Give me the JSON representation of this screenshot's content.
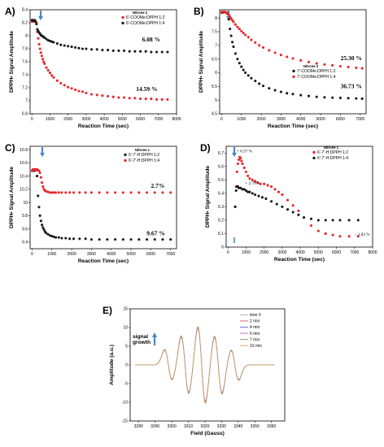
{
  "chart_data": [
    {
      "id": "A",
      "type": "scatter",
      "panel_label": "A)",
      "xlabel": "Reaction Time (sec)",
      "ylabel": "DPPH• Signal Amplitude",
      "xlim": [
        -100,
        8000
      ],
      "ylim": [
        6.8,
        8.4
      ],
      "xticks": [
        0,
        1000,
        2000,
        3000,
        4000,
        5000,
        6000,
        7000,
        8000
      ],
      "yticks": [
        6.8,
        7.0,
        7.2,
        7.4,
        7.6,
        7.8,
        8.0,
        8.2,
        8.4
      ],
      "legend_title": "Nitrone 2",
      "legend_position": "top-right",
      "series": [
        {
          "name": "6'-COOMe:DPPH 1:2",
          "color": "#e8262b",
          "x": [
            0,
            50,
            100,
            150,
            200,
            250,
            300,
            350,
            400,
            450,
            500,
            550,
            600,
            650,
            700,
            800,
            900,
            1000,
            1100,
            1200,
            1400,
            1600,
            1800,
            2000,
            2200,
            2400,
            2600,
            2800,
            3000,
            3300,
            3600,
            3900,
            4200,
            4500,
            4800,
            5100,
            5400,
            5700,
            6000,
            6300,
            6600,
            6900,
            7200,
            7500
          ],
          "y": [
            8.22,
            8.22,
            8.23,
            8.22,
            8.22,
            8.2,
            8.06,
            7.96,
            7.87,
            7.8,
            7.74,
            7.69,
            7.64,
            7.6,
            7.57,
            7.51,
            7.47,
            7.43,
            7.39,
            7.36,
            7.31,
            7.27,
            7.24,
            7.21,
            7.19,
            7.17,
            7.15,
            7.14,
            7.12,
            7.1,
            7.09,
            7.08,
            7.07,
            7.06,
            7.05,
            7.05,
            7.04,
            7.04,
            7.03,
            7.03,
            7.03,
            7.02,
            7.02,
            7.02
          ]
        },
        {
          "name": "6'-COOMe:DPPH 1:4",
          "color": "#1a1a1a",
          "x": [
            0,
            50,
            100,
            150,
            200,
            250,
            300,
            350,
            400,
            450,
            500,
            550,
            600,
            650,
            700,
            800,
            900,
            1000,
            1100,
            1200,
            1400,
            1600,
            1800,
            2000,
            2200,
            2400,
            2600,
            2800,
            3000,
            3300,
            3600,
            3900,
            4200,
            4500,
            4800,
            5100,
            5400,
            5700,
            6000,
            6300,
            6600,
            6900,
            7200,
            7500
          ],
          "y": [
            8.24,
            8.24,
            8.23,
            8.24,
            8.22,
            8.18,
            8.1,
            8.07,
            8.05,
            8.03,
            8.01,
            8.0,
            7.99,
            7.98,
            7.97,
            7.95,
            7.93,
            7.92,
            7.91,
            7.9,
            7.88,
            7.86,
            7.85,
            7.84,
            7.83,
            7.82,
            7.81,
            7.8,
            7.8,
            7.79,
            7.79,
            7.78,
            7.78,
            7.77,
            7.77,
            7.77,
            7.76,
            7.76,
            7.76,
            7.76,
            7.75,
            7.75,
            7.75,
            7.75
          ]
        }
      ],
      "annotations": [
        {
          "text": "6.08 %",
          "x": 6600,
          "y": 7.91
        },
        {
          "text": "14.59 %",
          "x": 6350,
          "y": 7.15
        }
      ]
    },
    {
      "id": "B",
      "type": "scatter",
      "panel_label": "B)",
      "xlabel": "Reaction Time (sec)",
      "ylabel": "DPPH• Signal Amplitude",
      "xlim": [
        -100,
        7300
      ],
      "ylim": [
        4.5,
        8.3
      ],
      "xticks": [
        0,
        1000,
        2000,
        3000,
        4000,
        5000,
        6000,
        7000
      ],
      "yticks": [
        4.5,
        5.0,
        5.5,
        6.0,
        6.5,
        7.0,
        7.5,
        8.0
      ],
      "legend_title": "Nitrone 3",
      "legend_position": "top-right",
      "series": [
        {
          "name": "7'-COOMe:DPPH 1:2",
          "color": "#1a1a1a",
          "x": [
            0,
            60,
            120,
            180,
            240,
            300,
            360,
            420,
            480,
            540,
            600,
            700,
            800,
            900,
            1000,
            1100,
            1200,
            1350,
            1500,
            1700,
            1900,
            2100,
            2400,
            2700,
            3000,
            3300,
            3600,
            4000,
            4400,
            4800,
            5200,
            5600,
            6000,
            6400,
            6800,
            7100
          ],
          "y": [
            8.2,
            8.2,
            8.22,
            8.21,
            8.2,
            8.15,
            7.95,
            7.6,
            7.35,
            7.12,
            6.95,
            6.7,
            6.5,
            6.35,
            6.22,
            6.1,
            6.0,
            5.9,
            5.8,
            5.7,
            5.6,
            5.52,
            5.43,
            5.36,
            5.3,
            5.25,
            5.22,
            5.18,
            5.15,
            5.12,
            5.1,
            5.09,
            5.08,
            5.07,
            5.06,
            5.05
          ]
        },
        {
          "name": "7'-COOMe:DPPH 1:4",
          "color": "#e8262b",
          "x": [
            0,
            60,
            120,
            180,
            240,
            300,
            360,
            420,
            480,
            540,
            600,
            700,
            800,
            900,
            1000,
            1100,
            1200,
            1350,
            1500,
            1700,
            1900,
            2100,
            2400,
            2700,
            3000,
            3300,
            3600,
            4000,
            4400,
            4800,
            5200,
            5600,
            6000,
            6400,
            6800,
            7100
          ],
          "y": [
            8.22,
            8.22,
            8.21,
            8.22,
            8.2,
            8.18,
            8.12,
            8.05,
            7.98,
            7.92,
            7.86,
            7.76,
            7.67,
            7.6,
            7.52,
            7.45,
            7.38,
            7.3,
            7.2,
            7.1,
            7.0,
            6.92,
            6.82,
            6.73,
            6.65,
            6.58,
            6.52,
            6.45,
            6.39,
            6.34,
            6.3,
            6.27,
            6.24,
            6.21,
            6.18,
            6.16
          ]
        }
      ],
      "annotations": [
        {
          "text": "25.30 %",
          "x": 6550,
          "y": 6.46
        },
        {
          "text": "36.73 %",
          "x": 6550,
          "y": 5.43
        }
      ]
    },
    {
      "id": "C",
      "type": "scatter",
      "panel_label": "C)",
      "xlabel": "Reaction Time (sec)",
      "ylabel": "DPPH• Signal Amplitude",
      "xlim": [
        -100,
        7300
      ],
      "ylim": [
        9.3,
        10.85
      ],
      "xticks": [
        0,
        1000,
        2000,
        3000,
        4000,
        5000,
        6000,
        7000
      ],
      "yticks": [
        9.4,
        9.6,
        9.8,
        10.0,
        10.2,
        10.4,
        10.6,
        10.8
      ],
      "legend_title": "Nitrone 1",
      "legend_position": "top-right",
      "series": [
        {
          "name": "6'-7'-H:DPPH 1:2",
          "color": "#1a1a1a",
          "x": [
            0,
            50,
            100,
            150,
            200,
            250,
            300,
            350,
            400,
            450,
            500,
            550,
            600,
            650,
            700,
            800,
            900,
            1000,
            1100,
            1200,
            1350,
            1500,
            1700,
            1900,
            2100,
            2400,
            2700,
            3000,
            3400,
            3800,
            4200,
            4600,
            5000,
            5400,
            5800,
            6200,
            6600,
            7000
          ],
          "y": [
            10.48,
            10.5,
            10.48,
            10.5,
            10.49,
            10.4,
            10.1,
            9.93,
            9.8,
            9.72,
            9.66,
            9.62,
            9.59,
            9.56,
            9.54,
            9.52,
            9.5,
            9.49,
            9.48,
            9.47,
            9.47,
            9.46,
            9.46,
            9.45,
            9.45,
            9.45,
            9.45,
            9.44,
            9.44,
            9.44,
            9.44,
            9.44,
            9.44,
            9.44,
            9.44,
            9.44,
            9.44,
            9.44
          ]
        },
        {
          "name": "6'-7'-H:DPPH 1:4",
          "color": "#e8262b",
          "x": [
            0,
            50,
            100,
            150,
            200,
            250,
            300,
            350,
            400,
            450,
            500,
            550,
            600,
            650,
            700,
            800,
            900,
            1000,
            1100,
            1200,
            1350,
            1500,
            1700,
            1900,
            2100,
            2400,
            2700,
            3000,
            3400,
            3800,
            4200,
            4600,
            5000,
            5400,
            5800,
            6200,
            6600,
            7000
          ],
          "y": [
            10.48,
            10.5,
            10.49,
            10.5,
            10.5,
            10.5,
            10.49,
            10.48,
            10.45,
            10.38,
            10.3,
            10.24,
            10.2,
            10.18,
            10.17,
            10.16,
            10.15,
            10.15,
            10.15,
            10.15,
            10.15,
            10.15,
            10.15,
            10.15,
            10.15,
            10.15,
            10.15,
            10.15,
            10.15,
            10.15,
            10.15,
            10.15,
            10.15,
            10.15,
            10.15,
            10.15,
            10.15,
            10.15
          ]
        }
      ],
      "annotations": [
        {
          "text": "2.7%",
          "x": 6350,
          "y": 10.22
        },
        {
          "text": "9.67 %",
          "x": 6250,
          "y": 9.5
        }
      ]
    },
    {
      "id": "D",
      "type": "scatter",
      "panel_label": "D)",
      "xlabel": "Reaction Time (sec)",
      "ylabel": "DPPH• Signal Amplitude",
      "xlim": [
        -100,
        8000
      ],
      "ylim": [
        6.0,
        6.75
      ],
      "xticks": [
        0,
        1000,
        2000,
        3000,
        4000,
        5000,
        6000,
        7000,
        8000
      ],
      "yticks": [
        6.0,
        6.1,
        6.2,
        6.3,
        6.4,
        6.5,
        6.6,
        6.7
      ],
      "legend_title": "Nitrone 1",
      "legend_position": "top-right",
      "series": [
        {
          "name": "6'-7'-H:DPPH 1:2",
          "color": "#e8262b",
          "x": [
            400,
            450,
            500,
            550,
            600,
            650,
            700,
            750,
            800,
            900,
            1000,
            1100,
            1200,
            1350,
            1500,
            1650,
            1800,
            2000,
            2200,
            2400,
            2600,
            2800,
            3000,
            3300,
            3600,
            3900,
            4200,
            4600,
            5000,
            5400,
            5800,
            6200,
            6700,
            7200
          ],
          "y": [
            6.3,
            6.45,
            6.56,
            6.62,
            6.65,
            6.67,
            6.66,
            6.64,
            6.62,
            6.59,
            6.56,
            6.53,
            6.51,
            6.5,
            6.49,
            6.48,
            6.47,
            6.47,
            6.46,
            6.45,
            6.43,
            6.41,
            6.39,
            6.35,
            6.31,
            6.27,
            6.22,
            6.16,
            6.12,
            6.1,
            6.09,
            6.08,
            6.08,
            6.08
          ]
        },
        {
          "name": "6'-7'-H:DPPH 1:4",
          "color": "#1a1a1a",
          "x": [
            400,
            450,
            500,
            550,
            600,
            700,
            800,
            900,
            1000,
            1100,
            1200,
            1350,
            1500,
            1700,
            1900,
            2100,
            2400,
            2700,
            3000,
            3300,
            3600,
            3900,
            4200,
            4600,
            5000,
            5400,
            5800,
            6200,
            6700,
            7200
          ],
          "y": [
            6.3,
            6.42,
            6.45,
            6.45,
            6.44,
            6.44,
            6.43,
            6.43,
            6.42,
            6.41,
            6.41,
            6.4,
            6.39,
            6.38,
            6.37,
            6.36,
            6.34,
            6.32,
            6.3,
            6.28,
            6.26,
            6.24,
            6.22,
            6.21,
            6.2,
            6.2,
            6.2,
            6.2,
            6.2,
            6.2
          ]
        }
      ],
      "annotations": [
        {
          "text": "+ 6.57 %",
          "x": 480,
          "y": 6.705
        },
        {
          "text": "+ 2.79%",
          "x": 950,
          "y": 6.465
        },
        {
          "text": "- 1.82 %",
          "x": 7050,
          "y": 6.085
        }
      ]
    },
    {
      "id": "E",
      "type": "line",
      "panel_label": "E)",
      "xlabel": "Field (Gauss)",
      "ylabel": "Amplitude (a.u.)",
      "xlim": [
        3275,
        3368
      ],
      "ylim": [
        -15,
        15
      ],
      "xticks": [
        3280,
        3290,
        3300,
        3310,
        3320,
        3330,
        3340,
        3350,
        3360
      ],
      "yticks": [
        -15,
        -10,
        -5,
        0,
        5,
        10,
        15
      ],
      "legend_position": "top-right",
      "annotation": "signal growth",
      "series": [
        {
          "name": "time 0",
          "color": "#a3a3a3",
          "scale": 0.93
        },
        {
          "name": "2 min",
          "color": "#e05a5a",
          "scale": 0.95
        },
        {
          "name": "4 min",
          "color": "#5a6fd8",
          "scale": 0.97
        },
        {
          "name": "6 min",
          "color": "#c463c4",
          "scale": 0.98
        },
        {
          "name": "7 min",
          "color": "#6c9a5a",
          "scale": 0.99
        },
        {
          "name": "10 min",
          "color": "#e3a55c",
          "scale": 1.0
        }
      ]
    }
  ]
}
